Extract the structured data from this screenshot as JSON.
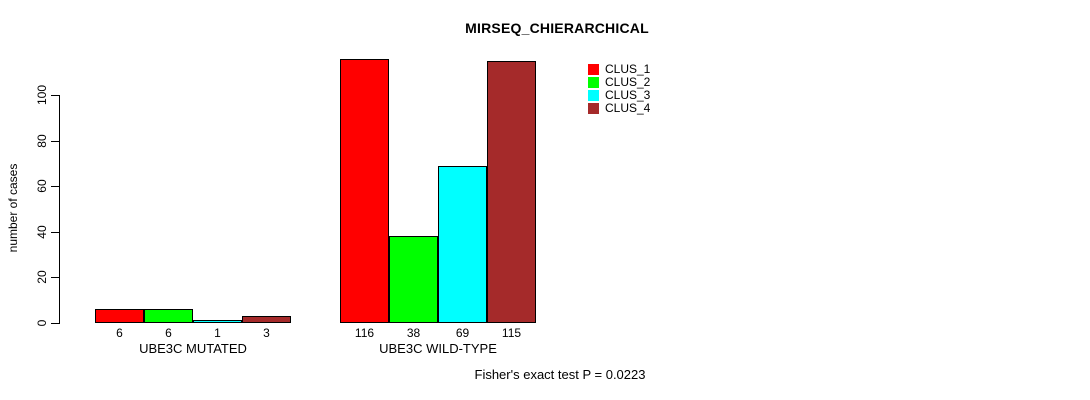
{
  "page": {
    "background": "#FFFFFF",
    "text_color": "#000000",
    "axis_color": "#000000"
  },
  "chart_data": {
    "type": "bar",
    "title": "MIRSEQ_CHIERARCHICAL",
    "ylabel": "number of cases",
    "xlabel": "",
    "footer": "Fisher's exact test P = 0.0223",
    "categories": [
      "UBE3C MUTATED",
      "UBE3C WILD-TYPE"
    ],
    "series": [
      {
        "name": "CLUS_1",
        "color": "#FF0000",
        "values": [
          6,
          116
        ]
      },
      {
        "name": "CLUS_2",
        "color": "#00FF00",
        "values": [
          6,
          38
        ]
      },
      {
        "name": "CLUS_3",
        "color": "#00FFFF",
        "values": [
          1,
          69
        ]
      },
      {
        "name": "CLUS_4",
        "color": "#A52A2A",
        "values": [
          3,
          115
        ]
      }
    ],
    "bar_value_labels_shown": true,
    "y_ticks": [
      0,
      20,
      40,
      60,
      80,
      100
    ],
    "ylim": [
      0,
      116
    ],
    "grid": false,
    "legend_position": "top-right"
  }
}
